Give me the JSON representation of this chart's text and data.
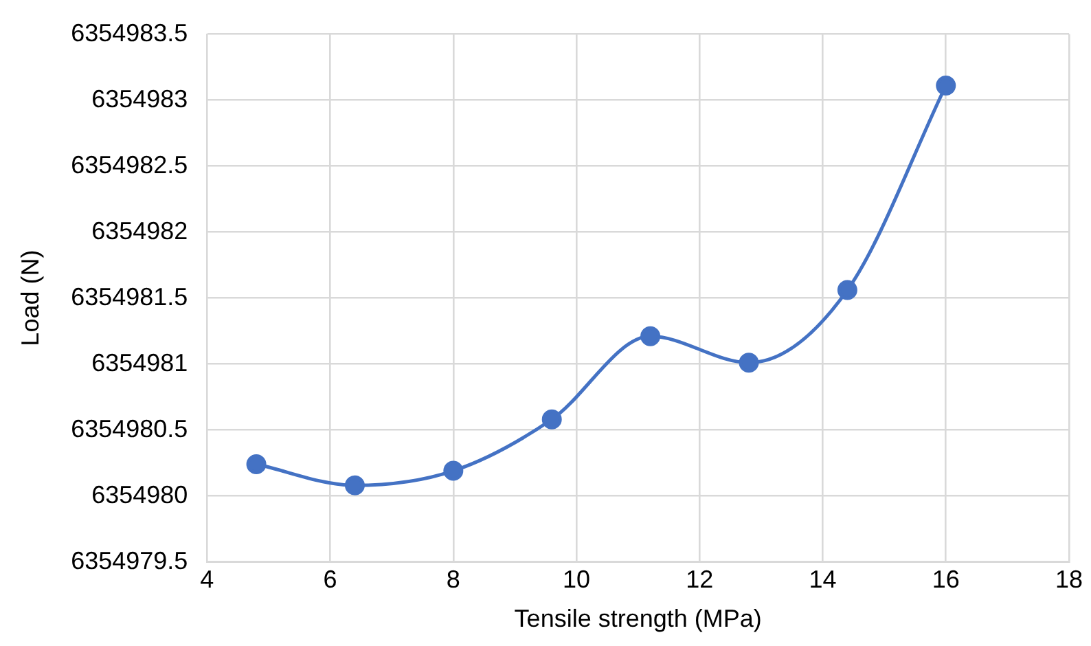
{
  "chart_data": {
    "type": "line",
    "xlabel": "Tensile strength (MPa)",
    "ylabel": "Load (N)",
    "x": [
      4.8,
      6.4,
      8,
      9.6,
      11.2,
      12.8,
      14.4,
      16
    ],
    "series": [
      {
        "color": "#4472c4",
        "values": [
          6354980.24,
          6354980.08,
          6354980.19,
          6354980.58,
          6354981.21,
          6354981.01,
          6354981.56,
          6354983.11
        ]
      }
    ],
    "xlim": [
      4,
      18
    ],
    "xticks": [
      4,
      6,
      8,
      10,
      12,
      14,
      16,
      18
    ],
    "ylim": [
      6354979.5,
      6354983.5
    ],
    "yticks": [
      6354979.5,
      6354980,
      6354980.5,
      6354981,
      6354981.5,
      6354982,
      6354982.5,
      6354983,
      6354983.5
    ],
    "grid": true,
    "marker": "circle",
    "line_style": "solid",
    "legend": false
  }
}
